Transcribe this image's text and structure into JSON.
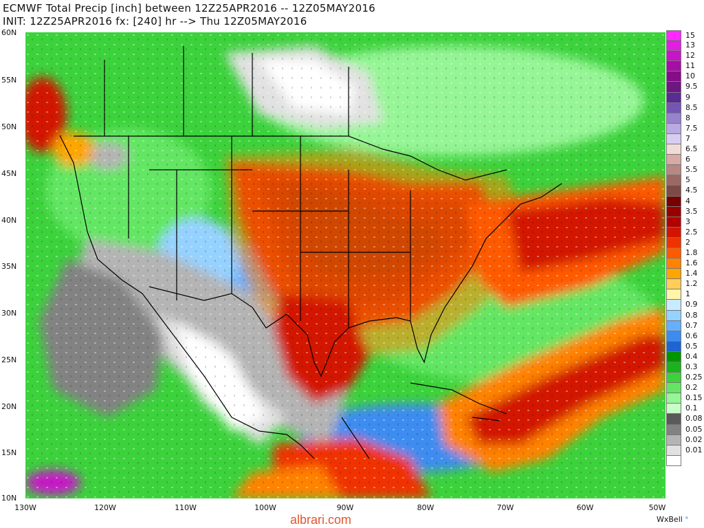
{
  "title": {
    "line1": "ECMWF Total Precip [inch] between 12Z25APR2016 -- 12Z05MAY2016",
    "line2": "INIT: 12Z25APR2016 fx: [240] hr --> Thu 12Z05MAY2016"
  },
  "axes": {
    "lat_labels": [
      "60N",
      "55N",
      "50N",
      "45N",
      "40N",
      "35N",
      "30N",
      "25N",
      "20N",
      "15N",
      "10N"
    ],
    "lon_labels": [
      "130W",
      "120W",
      "110W",
      "100W",
      "90W",
      "80W",
      "70W",
      "60W",
      "50W"
    ]
  },
  "colorbar": [
    {
      "label": "15",
      "color": "#ff28ff"
    },
    {
      "label": "13",
      "color": "#e11ee1"
    },
    {
      "label": "12",
      "color": "#c814c8"
    },
    {
      "label": "11",
      "color": "#a50fa5"
    },
    {
      "label": "10",
      "color": "#870c87"
    },
    {
      "label": "9.5",
      "color": "#6e1682"
    },
    {
      "label": "9",
      "color": "#5a2a96"
    },
    {
      "label": "8.5",
      "color": "#7355b4"
    },
    {
      "label": "8",
      "color": "#9682cd"
    },
    {
      "label": "7.5",
      "color": "#b9aae1"
    },
    {
      "label": "7",
      "color": "#d7cdf0"
    },
    {
      "label": "6.5",
      "color": "#f0dcd7"
    },
    {
      "label": "6",
      "color": "#d7aaa5"
    },
    {
      "label": "5.5",
      "color": "#b98782"
    },
    {
      "label": "5",
      "color": "#9b6964"
    },
    {
      "label": "4.5",
      "color": "#7d4b46"
    },
    {
      "label": "4",
      "color": "#780000"
    },
    {
      "label": "3.5",
      "color": "#960000"
    },
    {
      "label": "3",
      "color": "#b40000"
    },
    {
      "label": "2.5",
      "color": "#d21400"
    },
    {
      "label": "2",
      "color": "#f03200"
    },
    {
      "label": "1.8",
      "color": "#ff5a00"
    },
    {
      "label": "1.6",
      "color": "#ff8200"
    },
    {
      "label": "1.4",
      "color": "#ffa500"
    },
    {
      "label": "1.2",
      "color": "#ffcd5a"
    },
    {
      "label": "1",
      "color": "#fff5aa"
    },
    {
      "label": "0.9",
      "color": "#c8ebff"
    },
    {
      "label": "0.8",
      "color": "#96d2ff"
    },
    {
      "label": "0.7",
      "color": "#64afff"
    },
    {
      "label": "0.6",
      "color": "#3c8cf0"
    },
    {
      "label": "0.5",
      "color": "#1e64d2"
    },
    {
      "label": "0.4",
      "color": "#009600"
    },
    {
      "label": "0.3",
      "color": "#19b419"
    },
    {
      "label": "0.25",
      "color": "#3cd23c"
    },
    {
      "label": "0.2",
      "color": "#64e664"
    },
    {
      "label": "0.15",
      "color": "#96f596"
    },
    {
      "label": "0.1",
      "color": "#c8ffc8"
    },
    {
      "label": "0.08",
      "color": "#5a5a5a"
    },
    {
      "label": "0.05",
      "color": "#828282"
    },
    {
      "label": "0.02",
      "color": "#b4b4b4"
    },
    {
      "label": "0.01",
      "color": "#e1e1e1"
    },
    {
      "label": "",
      "color": "#ffffff"
    }
  ],
  "watermark": "albrari.com",
  "brand": "WxBell",
  "brand_dot": "°"
}
